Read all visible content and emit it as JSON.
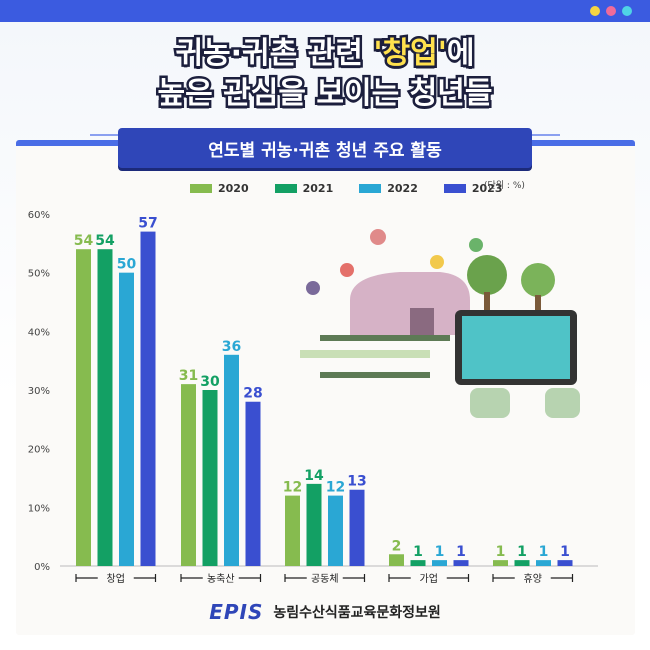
{
  "header": {
    "line1_pre": "귀농·귀촌 관련 ",
    "line1_accent": "'창업'",
    "line1_post": "에",
    "line2": "높은 관심을 보이는 청년들"
  },
  "subtitle": "연도별 귀농·귀촌 청년 주요 활동",
  "unit": "(단위 : %)",
  "footer": {
    "logo": "EPIS",
    "org": "농림수산식품교육문화정보원"
  },
  "colors": {
    "2020": "#86bb4f",
    "2021": "#13a064",
    "2022": "#2aa7d4",
    "2023": "#3a4fd0"
  },
  "chart_data": {
    "type": "bar",
    "title": "연도별 귀농·귀촌 청년 주요 활동",
    "categories": [
      "창업",
      "농축산",
      "공동체",
      "가업",
      "휴양"
    ],
    "series": [
      {
        "name": "2020",
        "values": [
          54,
          31,
          12,
          2,
          1
        ]
      },
      {
        "name": "2021",
        "values": [
          54,
          30,
          14,
          1,
          1
        ]
      },
      {
        "name": "2022",
        "values": [
          50,
          36,
          12,
          1,
          1
        ]
      },
      {
        "name": "2023",
        "values": [
          57,
          28,
          13,
          1,
          1
        ]
      }
    ],
    "yticks": [
      "0%",
      "10%",
      "20%",
      "30%",
      "40%",
      "50%",
      "60%"
    ],
    "ylim": [
      0,
      60
    ],
    "legend_position": "top",
    "grid": false
  }
}
